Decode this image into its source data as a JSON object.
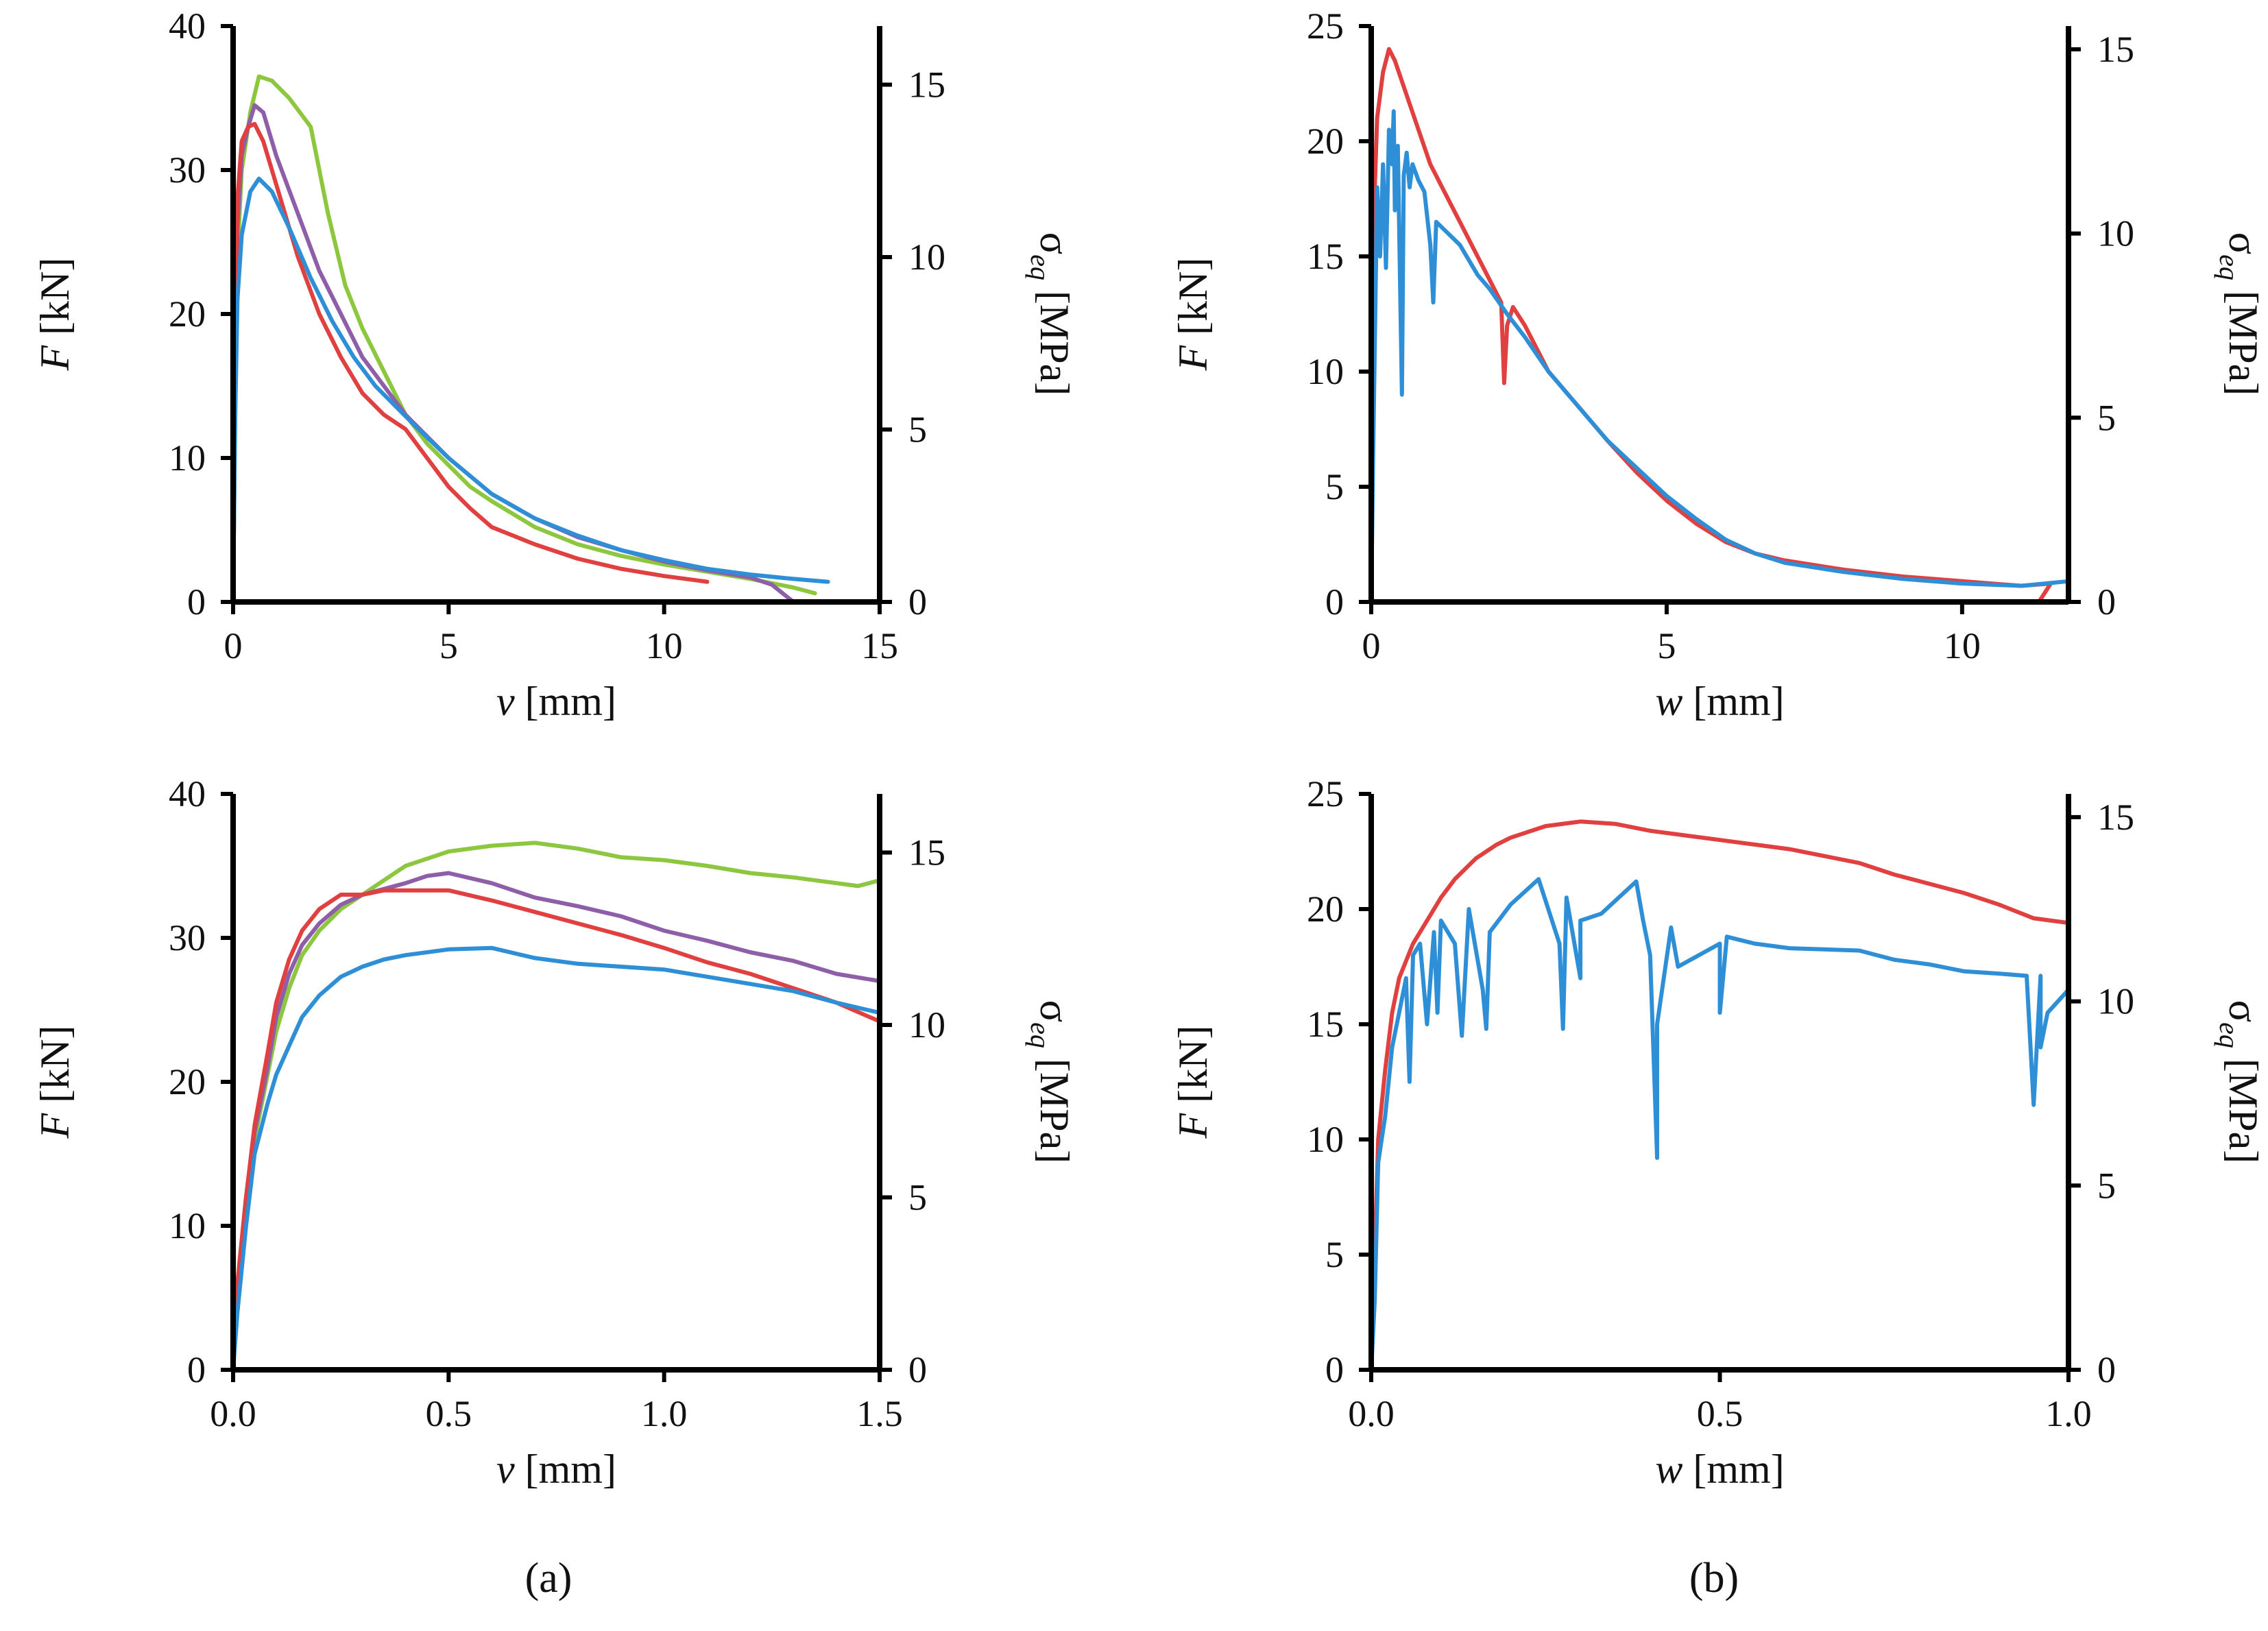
{
  "panel_labels": [
    "(a)",
    "(b)"
  ],
  "chart_data": [
    {
      "id": "a_top",
      "type": "line",
      "xlabel": {
        "var": "v",
        "unit": "[mm]"
      },
      "ylabel": {
        "var": "F",
        "unit": "[kN]"
      },
      "y2label": {
        "var": "σ",
        "sub": "eq",
        "unit": "[MPa]"
      },
      "xlim": [
        0,
        15
      ],
      "ylim": [
        0,
        40
      ],
      "y2lim": [
        0,
        16.7
      ],
      "xticks": [
        "0",
        "5",
        "10",
        "15"
      ],
      "xtick_values": [
        0,
        5,
        10,
        15
      ],
      "yticks": [
        "0",
        "10",
        "20",
        "30",
        "40"
      ],
      "ytick_values": [
        0,
        10,
        20,
        30,
        40
      ],
      "y2ticks": [
        "0",
        "5",
        "10",
        "15"
      ],
      "y2tick_values": [
        0,
        5,
        10,
        15
      ],
      "series": [
        {
          "name": "green",
          "color": "#8dc63f",
          "x": [
            0,
            0.05,
            0.1,
            0.2,
            0.4,
            0.6,
            0.9,
            1.3,
            1.8,
            2.2,
            2.6,
            3.0,
            3.5,
            4.0,
            4.5,
            5.0,
            5.5,
            6,
            7,
            8,
            9,
            10,
            11,
            12,
            13,
            13.5
          ],
          "y": [
            0,
            14,
            24,
            30,
            34,
            36.5,
            36.2,
            35,
            33,
            27,
            22,
            19,
            16,
            13,
            11,
            9.5,
            8,
            7,
            5.2,
            4,
            3.2,
            2.6,
            2.1,
            1.6,
            1,
            0.6
          ]
        },
        {
          "name": "purple",
          "color": "#8e5fa8",
          "x": [
            0,
            0.05,
            0.1,
            0.2,
            0.35,
            0.5,
            0.7,
            1.0,
            1.5,
            2.0,
            2.5,
            3.0,
            3.5,
            4.0,
            5,
            6,
            7,
            8,
            9,
            10,
            11,
            12,
            12.5,
            13
          ],
          "y": [
            0,
            15,
            26,
            31,
            33,
            34.5,
            34,
            31,
            27,
            23,
            20,
            17,
            15,
            13,
            10,
            7.5,
            5.8,
            4.5,
            3.6,
            2.8,
            2.2,
            1.7,
            1.2,
            0
          ]
        },
        {
          "name": "red",
          "color": "#e04040",
          "x": [
            0,
            0.05,
            0.1,
            0.2,
            0.35,
            0.5,
            0.7,
            1.0,
            1.5,
            2.0,
            2.5,
            3.0,
            3.5,
            4.0,
            4.5,
            5,
            5.5,
            6,
            7,
            8,
            9,
            10,
            11
          ],
          "y": [
            0,
            16,
            28,
            32,
            33,
            33.2,
            32,
            29,
            24,
            20,
            17,
            14.5,
            13,
            12,
            10,
            8,
            6.5,
            5.2,
            4,
            3,
            2.3,
            1.8,
            1.4
          ]
        },
        {
          "name": "blue",
          "color": "#2f8fd6",
          "x": [
            0,
            0.05,
            0.1,
            0.2,
            0.4,
            0.6,
            0.9,
            1.3,
            1.8,
            2.3,
            2.8,
            3.3,
            3.8,
            4.3,
            5,
            6,
            7,
            8,
            9,
            10,
            11,
            12,
            13,
            13.8
          ],
          "y": [
            0,
            13,
            21,
            25.5,
            28.5,
            29.4,
            28.5,
            26,
            22.5,
            19.5,
            17,
            15,
            13.5,
            12,
            10,
            7.5,
            5.8,
            4.6,
            3.6,
            2.9,
            2.3,
            1.9,
            1.6,
            1.4
          ]
        }
      ]
    },
    {
      "id": "b_top",
      "type": "line",
      "xlabel": {
        "var": "w",
        "unit": "[mm]"
      },
      "ylabel": {
        "var": "F",
        "unit": "[kN]"
      },
      "y2label": {
        "var": "σ",
        "sub": "eq",
        "unit": "[MPa]"
      },
      "xlim": [
        0,
        11.8
      ],
      "ylim": [
        0,
        25
      ],
      "y2lim": [
        0,
        15.63
      ],
      "xticks": [
        "0",
        "5",
        "10"
      ],
      "xtick_values": [
        0,
        5,
        10
      ],
      "yticks": [
        "0",
        "5",
        "10",
        "15",
        "20",
        "25"
      ],
      "ytick_values": [
        0,
        5,
        10,
        15,
        20,
        25
      ],
      "y2ticks": [
        "0",
        "5",
        "10",
        "15"
      ],
      "y2tick_values": [
        0,
        5,
        10,
        15
      ],
      "series": [
        {
          "name": "red",
          "color": "#e04040",
          "x": [
            0,
            0.03,
            0.06,
            0.1,
            0.2,
            0.3,
            0.4,
            0.6,
            0.8,
            1.0,
            1.2,
            1.5,
            1.8,
            2.0,
            2.2,
            2.25,
            2.3,
            2.4,
            2.6,
            3.0,
            3.5,
            4,
            4.5,
            5,
            5.5,
            6,
            6.5,
            7,
            8,
            9,
            10,
            11,
            11.5,
            11.3
          ],
          "y": [
            0,
            10,
            18,
            21,
            23,
            24,
            23.5,
            22,
            20.5,
            19,
            18,
            16.5,
            15,
            14,
            13,
            9.5,
            12,
            12.8,
            12,
            10,
            8.5,
            7,
            5.6,
            4.4,
            3.4,
            2.6,
            2.1,
            1.8,
            1.4,
            1.1,
            0.9,
            0.7,
            0.8,
            0
          ]
        },
        {
          "name": "blue",
          "color": "#2f8fd6",
          "x": [
            0,
            0.03,
            0.08,
            0.1,
            0.15,
            0.2,
            0.25,
            0.3,
            0.35,
            0.38,
            0.4,
            0.45,
            0.5,
            0.52,
            0.55,
            0.6,
            0.65,
            0.7,
            0.8,
            0.9,
            1.0,
            1.05,
            1.1,
            1.3,
            1.5,
            1.8,
            2.0,
            2.3,
            2.6,
            3.0,
            3.5,
            4,
            4.5,
            5,
            5.5,
            6,
            6.5,
            7,
            8,
            9,
            10,
            11,
            11.8
          ],
          "y": [
            0,
            6,
            14.5,
            18,
            15,
            19,
            14.5,
            20.5,
            19,
            21.3,
            17,
            19.8,
            12,
            9,
            18.5,
            19.5,
            18,
            19,
            18.3,
            17.8,
            15.5,
            13,
            16.5,
            16,
            15.5,
            14.2,
            13.6,
            12.5,
            11.5,
            10,
            8.5,
            7,
            5.8,
            4.6,
            3.6,
            2.7,
            2.1,
            1.7,
            1.3,
            1,
            0.8,
            0.7,
            0.9
          ]
        }
      ]
    },
    {
      "id": "a_bottom",
      "type": "line",
      "xlabel": {
        "var": "v",
        "unit": "[mm]"
      },
      "ylabel": {
        "var": "F",
        "unit": "[kN]"
      },
      "y2label": {
        "var": "σ",
        "sub": "eq",
        "unit": "[MPa]"
      },
      "xlim": [
        0,
        1.5
      ],
      "ylim": [
        0,
        40
      ],
      "y2lim": [
        0,
        16.7
      ],
      "xticks": [
        "0.0",
        "0.5",
        "1.0",
        "1.5"
      ],
      "xtick_values": [
        0,
        0.5,
        1.0,
        1.5
      ],
      "yticks": [
        "0",
        "10",
        "20",
        "30",
        "40"
      ],
      "ytick_values": [
        0,
        10,
        20,
        30,
        40
      ],
      "y2ticks": [
        "0",
        "5",
        "10",
        "15"
      ],
      "y2tick_values": [
        0,
        5,
        10,
        15
      ],
      "series": [
        {
          "name": "green",
          "color": "#8dc63f",
          "x": [
            0,
            0.01,
            0.03,
            0.05,
            0.08,
            0.1,
            0.13,
            0.16,
            0.2,
            0.25,
            0.3,
            0.35,
            0.4,
            0.5,
            0.6,
            0.7,
            0.8,
            0.9,
            1.0,
            1.1,
            1.2,
            1.3,
            1.4,
            1.45,
            1.5
          ],
          "y": [
            0,
            5,
            11,
            16,
            20.5,
            23.5,
            26.5,
            28.8,
            30.5,
            32,
            33,
            34,
            35,
            36,
            36.4,
            36.6,
            36.2,
            35.6,
            35.4,
            35,
            34.5,
            34.2,
            33.8,
            33.6,
            34
          ]
        },
        {
          "name": "purple",
          "color": "#8e5fa8",
          "x": [
            0,
            0.01,
            0.03,
            0.05,
            0.08,
            0.1,
            0.13,
            0.16,
            0.2,
            0.25,
            0.3,
            0.35,
            0.4,
            0.45,
            0.5,
            0.6,
            0.7,
            0.8,
            0.9,
            1.0,
            1.1,
            1.2,
            1.3,
            1.4,
            1.5
          ],
          "y": [
            0,
            6,
            12,
            16.5,
            21,
            24.5,
            27.5,
            29.5,
            31,
            32.3,
            33,
            33.4,
            33.8,
            34.3,
            34.5,
            33.8,
            32.8,
            32.2,
            31.5,
            30.5,
            29.8,
            29,
            28.4,
            27.5,
            27
          ]
        },
        {
          "name": "red",
          "color": "#e04040",
          "x": [
            0,
            0.01,
            0.03,
            0.05,
            0.08,
            0.1,
            0.13,
            0.16,
            0.2,
            0.25,
            0.3,
            0.35,
            0.4,
            0.5,
            0.6,
            0.7,
            0.8,
            0.9,
            1.0,
            1.1,
            1.2,
            1.3,
            1.4,
            1.5
          ],
          "y": [
            0,
            6,
            12,
            17,
            22,
            25.5,
            28.5,
            30.5,
            32,
            33,
            33,
            33.3,
            33.3,
            33.3,
            32.6,
            31.8,
            31,
            30.2,
            29.3,
            28.3,
            27.5,
            26.5,
            25.5,
            24.2
          ]
        },
        {
          "name": "blue",
          "color": "#2f8fd6",
          "x": [
            0,
            0.01,
            0.03,
            0.05,
            0.08,
            0.1,
            0.13,
            0.16,
            0.2,
            0.25,
            0.3,
            0.35,
            0.4,
            0.5,
            0.6,
            0.7,
            0.8,
            0.9,
            1.0,
            1.1,
            1.2,
            1.3,
            1.4,
            1.5
          ],
          "y": [
            0,
            4,
            10,
            15,
            18.5,
            20.5,
            22.5,
            24.5,
            26,
            27.3,
            28,
            28.5,
            28.8,
            29.2,
            29.3,
            28.6,
            28.2,
            28,
            27.8,
            27.3,
            26.8,
            26.3,
            25.5,
            24.8
          ]
        }
      ]
    },
    {
      "id": "b_bottom",
      "type": "line",
      "xlabel": {
        "var": "w",
        "unit": "[mm]"
      },
      "ylabel": {
        "var": "F",
        "unit": "[kN]"
      },
      "y2label": {
        "var": "σ",
        "sub": "eq",
        "unit": "[MPa]"
      },
      "xlim": [
        0,
        1.0
      ],
      "ylim": [
        0,
        25
      ],
      "y2lim": [
        0,
        15.63
      ],
      "xticks": [
        "0.0",
        "0.5",
        "1.0"
      ],
      "xtick_values": [
        0,
        0.5,
        1.0
      ],
      "yticks": [
        "0",
        "5",
        "10",
        "15",
        "20",
        "25"
      ],
      "ytick_values": [
        0,
        5,
        10,
        15,
        20,
        25
      ],
      "y2ticks": [
        "0",
        "5",
        "10",
        "15"
      ],
      "y2tick_values": [
        0,
        5,
        10,
        15
      ],
      "series": [
        {
          "name": "red",
          "color": "#e04040",
          "x": [
            0,
            0.005,
            0.01,
            0.02,
            0.03,
            0.04,
            0.06,
            0.08,
            0.1,
            0.12,
            0.15,
            0.18,
            0.2,
            0.25,
            0.3,
            0.35,
            0.4,
            0.45,
            0.5,
            0.55,
            0.6,
            0.65,
            0.7,
            0.75,
            0.8,
            0.85,
            0.9,
            0.95,
            1.0
          ],
          "y": [
            0,
            5,
            10,
            13,
            15.5,
            17,
            18.5,
            19.5,
            20.5,
            21.3,
            22.2,
            22.8,
            23.1,
            23.6,
            23.8,
            23.7,
            23.4,
            23.2,
            23.0,
            22.8,
            22.6,
            22.3,
            22.0,
            21.5,
            21.1,
            20.7,
            20.2,
            19.6,
            19.4
          ]
        },
        {
          "name": "blue",
          "color": "#2f8fd6",
          "x": [
            0,
            0.005,
            0.01,
            0.02,
            0.03,
            0.04,
            0.05,
            0.055,
            0.06,
            0.07,
            0.08,
            0.09,
            0.095,
            0.1,
            0.12,
            0.13,
            0.14,
            0.16,
            0.165,
            0.17,
            0.2,
            0.24,
            0.27,
            0.275,
            0.28,
            0.3,
            0.3,
            0.33,
            0.38,
            0.39,
            0.4,
            0.41,
            0.41,
            0.43,
            0.44,
            0.5,
            0.5,
            0.51,
            0.55,
            0.6,
            0.7,
            0.75,
            0.8,
            0.85,
            0.9,
            0.94,
            0.95,
            0.96,
            0.96,
            0.97,
            1.0
          ],
          "y": [
            0,
            3,
            9,
            11,
            14,
            15.5,
            17,
            12.5,
            18,
            18.5,
            15,
            19,
            15.5,
            19.5,
            18.5,
            14.5,
            20,
            16.5,
            14.8,
            19,
            20.2,
            21.3,
            18.5,
            14.8,
            20.5,
            17,
            19.5,
            19.8,
            21.2,
            19.5,
            18,
            9.2,
            15,
            19.2,
            17.5,
            18.5,
            15.5,
            18.8,
            18.5,
            18.3,
            18.2,
            17.8,
            17.6,
            17.3,
            17.2,
            17.1,
            11.5,
            17.1,
            14,
            15.5,
            16.5
          ]
        }
      ]
    }
  ]
}
